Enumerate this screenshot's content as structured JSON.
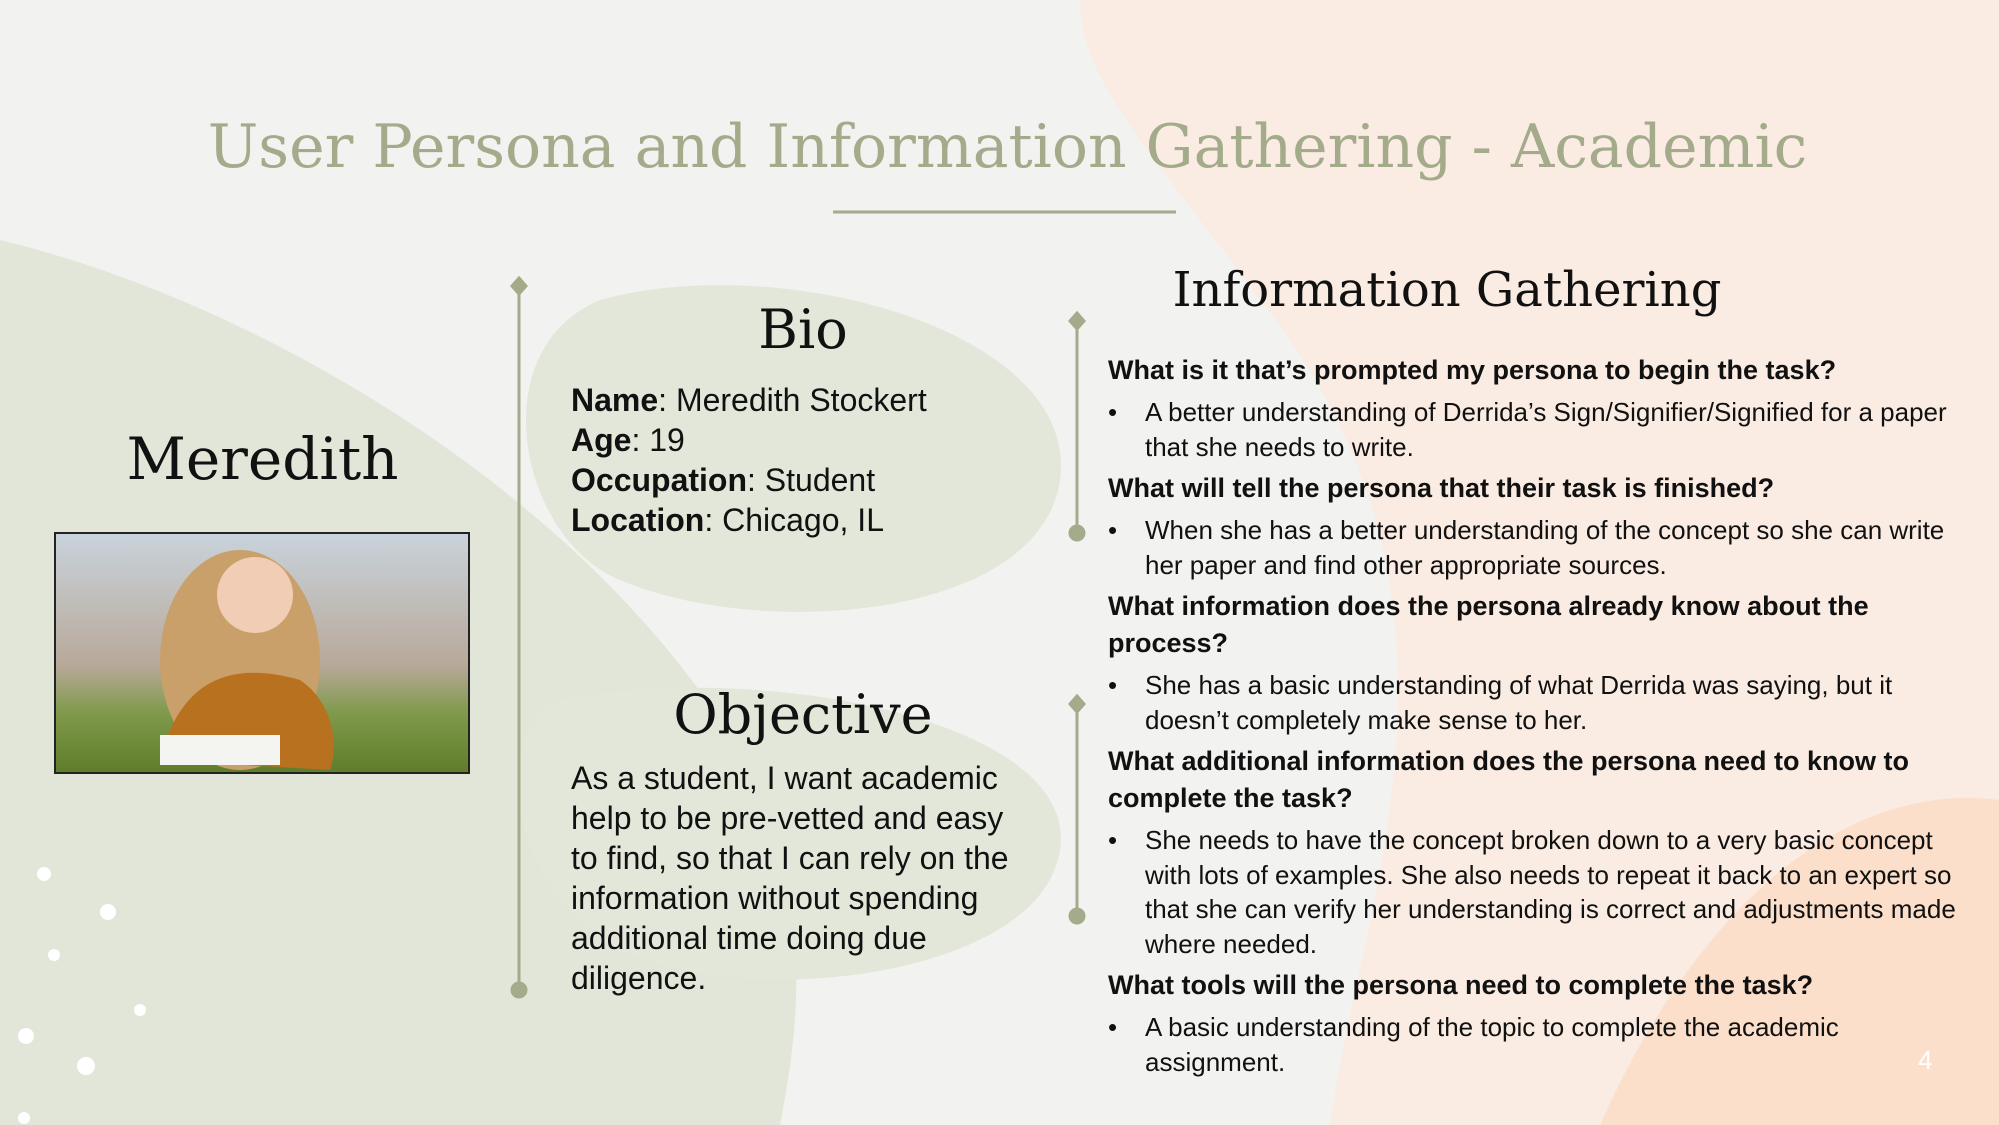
{
  "header": {
    "title": "User Persona and Information Gathering - Academic"
  },
  "persona": {
    "name": "Meredith"
  },
  "bio": {
    "heading": "Bio",
    "fields": [
      {
        "label": "Name",
        "value": ": Meredith Stockert"
      },
      {
        "label": "Age",
        "value": ": 19"
      },
      {
        "label": "Occupation",
        "value": ": Student"
      },
      {
        "label": "Location",
        "value": ": Chicago, IL"
      }
    ]
  },
  "objective": {
    "heading": "Objective",
    "text": "As a student, I want academic help to be pre-vetted and easy to find, so that I can rely on the information without spending additional time doing due diligence."
  },
  "information_gathering": {
    "heading": "Information Gathering",
    "items": [
      {
        "question": "What is it that’s prompted my persona to begin the task?",
        "answer": "A better understanding of Derrida’s Sign/Signifier/Signified for a paper that she needs to write."
      },
      {
        "question": "What will tell the persona that their task is finished?",
        "answer": "When she has a better understanding of the concept so she can write her paper and find other appropriate sources."
      },
      {
        "question": "What information does the persona already know about the process?",
        "answer": "She has a basic understanding of what Derrida was saying, but it doesn’t completely make sense to her."
      },
      {
        "question": "What additional information does the persona need to know to complete the task?",
        "answer": "She needs to have the concept broken down to a very basic concept with lots of examples.  She also needs to repeat it back to an expert so that she can verify her understanding is correct and adjustments made where needed."
      },
      {
        "question": "What tools will the persona need to complete the task?",
        "answer": "A basic understanding of the topic to complete the academic assignment."
      }
    ]
  },
  "footer": {
    "page_number": "4"
  }
}
